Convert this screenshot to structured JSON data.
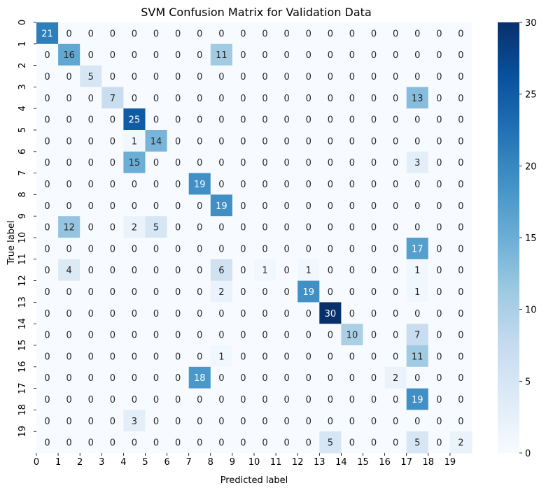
{
  "chart_data": {
    "type": "heatmap",
    "title": "SVM Confusion Matrix for Validation Data",
    "xlabel": "Predicted label",
    "ylabel": "True label",
    "x_tick_labels": [
      "0",
      "1",
      "2",
      "3",
      "4",
      "5",
      "6",
      "7",
      "8",
      "9",
      "10",
      "11",
      "12",
      "13",
      "14",
      "15",
      "16",
      "17",
      "18",
      "19"
    ],
    "y_tick_labels": [
      "0",
      "1",
      "2",
      "3",
      "4",
      "5",
      "6",
      "7",
      "8",
      "9",
      "10",
      "11",
      "12",
      "13",
      "14",
      "15",
      "16",
      "17",
      "18",
      "19"
    ],
    "matrix": [
      [
        21,
        0,
        0,
        0,
        0,
        0,
        0,
        0,
        0,
        0,
        0,
        0,
        0,
        0,
        0,
        0,
        0,
        0,
        0,
        0
      ],
      [
        0,
        16,
        0,
        0,
        0,
        0,
        0,
        0,
        11,
        0,
        0,
        0,
        0,
        0,
        0,
        0,
        0,
        0,
        0,
        0
      ],
      [
        0,
        0,
        5,
        0,
        0,
        0,
        0,
        0,
        0,
        0,
        0,
        0,
        0,
        0,
        0,
        0,
        0,
        0,
        0,
        0
      ],
      [
        0,
        0,
        0,
        7,
        0,
        0,
        0,
        0,
        0,
        0,
        0,
        0,
        0,
        0,
        0,
        0,
        0,
        13,
        0,
        0
      ],
      [
        0,
        0,
        0,
        0,
        25,
        0,
        0,
        0,
        0,
        0,
        0,
        0,
        0,
        0,
        0,
        0,
        0,
        0,
        0,
        0
      ],
      [
        0,
        0,
        0,
        0,
        1,
        14,
        0,
        0,
        0,
        0,
        0,
        0,
        0,
        0,
        0,
        0,
        0,
        0,
        0,
        0
      ],
      [
        0,
        0,
        0,
        0,
        15,
        0,
        0,
        0,
        0,
        0,
        0,
        0,
        0,
        0,
        0,
        0,
        0,
        3,
        0,
        0
      ],
      [
        0,
        0,
        0,
        0,
        0,
        0,
        0,
        19,
        0,
        0,
        0,
        0,
        0,
        0,
        0,
        0,
        0,
        0,
        0,
        0
      ],
      [
        0,
        0,
        0,
        0,
        0,
        0,
        0,
        0,
        19,
        0,
        0,
        0,
        0,
        0,
        0,
        0,
        0,
        0,
        0,
        0
      ],
      [
        0,
        12,
        0,
        0,
        2,
        5,
        0,
        0,
        0,
        0,
        0,
        0,
        0,
        0,
        0,
        0,
        0,
        0,
        0,
        0
      ],
      [
        0,
        0,
        0,
        0,
        0,
        0,
        0,
        0,
        0,
        0,
        0,
        0,
        0,
        0,
        0,
        0,
        0,
        17,
        0,
        0
      ],
      [
        0,
        4,
        0,
        0,
        0,
        0,
        0,
        0,
        6,
        0,
        1,
        0,
        1,
        0,
        0,
        0,
        0,
        1,
        0,
        0
      ],
      [
        0,
        0,
        0,
        0,
        0,
        0,
        0,
        0,
        2,
        0,
        0,
        0,
        19,
        0,
        0,
        0,
        0,
        1,
        0,
        0
      ],
      [
        0,
        0,
        0,
        0,
        0,
        0,
        0,
        0,
        0,
        0,
        0,
        0,
        0,
        30,
        0,
        0,
        0,
        0,
        0,
        0
      ],
      [
        0,
        0,
        0,
        0,
        0,
        0,
        0,
        0,
        0,
        0,
        0,
        0,
        0,
        0,
        10,
        0,
        0,
        7,
        0,
        0
      ],
      [
        0,
        0,
        0,
        0,
        0,
        0,
        0,
        0,
        1,
        0,
        0,
        0,
        0,
        0,
        0,
        0,
        0,
        11,
        0,
        0
      ],
      [
        0,
        0,
        0,
        0,
        0,
        0,
        0,
        18,
        0,
        0,
        0,
        0,
        0,
        0,
        0,
        0,
        2,
        0,
        0,
        0
      ],
      [
        0,
        0,
        0,
        0,
        0,
        0,
        0,
        0,
        0,
        0,
        0,
        0,
        0,
        0,
        0,
        0,
        0,
        19,
        0,
        0
      ],
      [
        0,
        0,
        0,
        0,
        3,
        0,
        0,
        0,
        0,
        0,
        0,
        0,
        0,
        0,
        0,
        0,
        0,
        0,
        0,
        0
      ],
      [
        0,
        0,
        0,
        0,
        0,
        0,
        0,
        0,
        0,
        0,
        0,
        0,
        0,
        5,
        0,
        0,
        0,
        5,
        0,
        2
      ]
    ],
    "colorbar": {
      "colormap": "Blues",
      "range": [
        0,
        30
      ],
      "tick_labels": [
        "0",
        "5",
        "10",
        "15",
        "20",
        "25",
        "30"
      ]
    },
    "grid": false,
    "legend": "colorbar-right"
  }
}
